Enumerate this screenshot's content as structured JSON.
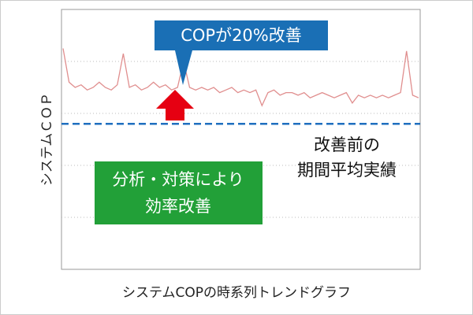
{
  "chart_data": {
    "type": "line",
    "x_label": "システムCOPの時系列トレンドグラフ",
    "y_label": "システムＣＯＰ",
    "series": [
      {
        "color": "#e08e8e",
        "values": [
          85,
          72,
          70,
          71,
          69,
          70,
          72,
          70,
          69,
          71,
          83,
          70,
          71,
          69,
          70,
          72,
          70,
          71,
          69,
          70,
          80,
          70,
          69,
          70,
          69,
          70,
          68,
          69,
          70,
          68,
          69,
          68,
          69,
          63,
          68,
          69,
          67,
          68,
          68,
          67,
          68,
          66,
          67,
          68,
          67,
          66,
          67,
          68,
          64,
          67,
          66,
          67,
          66,
          67,
          66,
          67,
          68,
          84,
          67,
          66
        ]
      }
    ],
    "ylim": [
      0,
      100
    ],
    "yticks": [
      20,
      40,
      60,
      80
    ],
    "grid": true,
    "reference_line": {
      "value": 56,
      "color": "#1f6fbf",
      "label_lines": [
        "改善前の",
        "期間平均実績"
      ]
    },
    "callout": {
      "text": "COPが20%改善",
      "color": "#1a6fb5"
    },
    "arrow_color": "#e60012",
    "note": {
      "lines": [
        "分析・対策により",
        "効率改善"
      ],
      "color": "#22a038"
    }
  }
}
